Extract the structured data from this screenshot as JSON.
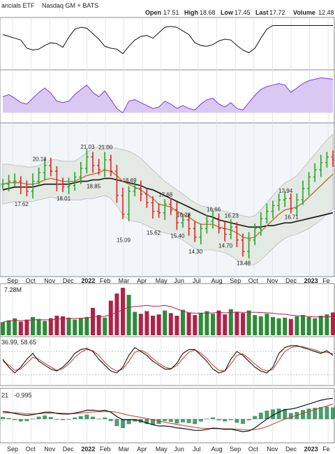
{
  "header": {
    "name_fragment": "ancials ETF",
    "exchange": "Nasdaq GM + BATS",
    "open_label": "Open",
    "open": "17.51",
    "high_label": "High",
    "high": "18.68",
    "low_label": "Low",
    "low": "17.45",
    "last_label": "Last",
    "last": "17.72",
    "volume_label": "Volume",
    "volume": "12.48"
  },
  "colors": {
    "up": "#2ca02c",
    "down": "#d62728",
    "price_bg": "#f3f6f9",
    "band_fill": "#e3e9e3",
    "ma_fast": "#b06b2a",
    "ma_slow": "#111111",
    "rsi_fill": "#d9c8f2",
    "rsi_line": "#7b3fd6",
    "vol_up": "#2e8b3a",
    "vol_down": "#b0224a",
    "stoch_k": "#111111",
    "stoch_d": "#c0392b",
    "macd_hist": "#2e8b57",
    "macd_line": "#111111",
    "macd_signal": "#c0392b"
  },
  "chart_data": {
    "type": "candlestick",
    "time_axis_labels": [
      "Sep",
      "Oct",
      "Nov",
      "Dec",
      "2022",
      "Feb",
      "Mar",
      "Apr",
      "May",
      "Jun",
      "Jul",
      "Aug",
      "Sep",
      "Oct",
      "Nov",
      "Dec",
      "2023",
      "Fe"
    ],
    "price_annotations": [
      {
        "label": "17.62",
        "week": 3
      },
      {
        "label": "20.18",
        "week": 6
      },
      {
        "label": "18.01",
        "week": 10
      },
      {
        "label": "21.03",
        "week": 14
      },
      {
        "label": "18.85",
        "week": 15
      },
      {
        "label": "21.00",
        "week": 17
      },
      {
        "label": "15.09",
        "week": 20
      },
      {
        "label": "18.69",
        "week": 21
      },
      {
        "label": "15.62",
        "week": 25
      },
      {
        "label": "17.68",
        "week": 27
      },
      {
        "label": "15.40",
        "week": 29
      },
      {
        "label": "16.28",
        "week": 30
      },
      {
        "label": "14.30",
        "week": 32
      },
      {
        "label": "16.66",
        "week": 35
      },
      {
        "label": "14.70",
        "week": 37
      },
      {
        "label": "16.23",
        "week": 38
      },
      {
        "label": "13.48",
        "week": 40
      },
      {
        "label": "17.94",
        "week": 47
      },
      {
        "label": "16.71",
        "week": 48
      }
    ],
    "weekly_closes": [
      18.7,
      18.9,
      18.9,
      18.5,
      18.2,
      18.9,
      19.5,
      20.0,
      19.6,
      18.7,
      18.5,
      18.6,
      19.2,
      19.8,
      20.6,
      20.0,
      19.7,
      20.4,
      19.6,
      17.9,
      16.6,
      18.2,
      18.4,
      18.0,
      17.4,
      16.8,
      16.7,
      17.3,
      16.9,
      16.0,
      16.2,
      15.6,
      15.0,
      15.6,
      16.1,
      16.3,
      15.6,
      15.2,
      15.7,
      14.8,
      14.0,
      14.8,
      15.6,
      16.3,
      16.8,
      17.2,
      17.6,
      17.7,
      17.0,
      17.6,
      18.4,
      19.2,
      19.7,
      20.2,
      20.6,
      20.4
    ],
    "sma_fast_values": [
      18.7,
      18.8,
      18.8,
      18.8,
      18.7,
      18.7,
      18.8,
      19.0,
      19.1,
      19.0,
      18.9,
      18.9,
      18.9,
      19.1,
      19.3,
      19.4,
      19.5,
      19.7,
      19.6,
      19.3,
      18.9,
      18.7,
      18.5,
      18.3,
      18.0,
      17.7,
      17.3,
      17.2,
      17.1,
      16.8,
      16.6,
      16.4,
      16.1,
      15.9,
      15.9,
      15.9,
      15.7,
      15.6,
      15.5,
      15.3,
      15.0,
      14.9,
      15.0,
      15.4,
      15.8,
      16.2,
      16.6,
      16.9,
      17.0,
      17.1,
      17.4,
      17.8,
      18.2,
      18.6,
      19.0,
      19.4
    ],
    "sma_slow_values": [
      18.3,
      18.4,
      18.5,
      18.5,
      18.5,
      18.5,
      18.6,
      18.7,
      18.7,
      18.7,
      18.7,
      18.7,
      18.8,
      18.9,
      18.9,
      19.0,
      19.0,
      19.1,
      19.1,
      19.0,
      18.9,
      18.8,
      18.7,
      18.6,
      18.4,
      18.3,
      18.1,
      17.9,
      17.7,
      17.5,
      17.3,
      17.1,
      16.9,
      16.7,
      16.5,
      16.4,
      16.2,
      16.1,
      16.0,
      15.9,
      15.8,
      15.7,
      15.7,
      15.7,
      15.8,
      15.8,
      15.9,
      16.0,
      16.0,
      16.1,
      16.2,
      16.3,
      16.4,
      16.5,
      16.6,
      16.7
    ],
    "bb_upper_values": [
      20.1,
      20.1,
      20.0,
      20.0,
      19.9,
      19.9,
      20.0,
      20.2,
      20.4,
      20.4,
      20.3,
      20.3,
      20.3,
      20.6,
      20.9,
      21.2,
      21.3,
      21.4,
      21.3,
      21.2,
      21.1,
      21.0,
      20.8,
      20.5,
      20.1,
      19.7,
      19.3,
      18.9,
      18.6,
      18.3,
      18.0,
      17.7,
      17.4,
      17.2,
      17.1,
      17.0,
      16.9,
      16.8,
      16.7,
      16.6,
      16.5,
      16.4,
      16.5,
      16.9,
      17.4,
      17.9,
      18.4,
      18.8,
      19.0,
      19.3,
      19.8,
      20.3,
      20.8,
      21.3,
      21.8,
      22.2
    ],
    "bb_lower_values": [
      17.3,
      17.4,
      17.5,
      17.5,
      17.5,
      17.5,
      17.6,
      17.7,
      17.8,
      17.7,
      17.6,
      17.6,
      17.6,
      17.6,
      17.7,
      17.7,
      17.8,
      17.9,
      17.7,
      17.2,
      16.5,
      16.2,
      16.1,
      16.0,
      15.8,
      15.6,
      15.4,
      15.3,
      15.2,
      15.0,
      14.8,
      14.5,
      14.2,
      14.1,
      14.1,
      14.1,
      14.0,
      13.9,
      13.7,
      13.4,
      13.1,
      13.0,
      13.1,
      13.4,
      13.8,
      14.2,
      14.6,
      14.9,
      15.1,
      15.2,
      15.4,
      15.6,
      15.9,
      16.2,
      16.6,
      17.0
    ],
    "rsi_values": [
      52,
      55,
      50,
      44,
      42,
      50,
      58,
      64,
      57,
      46,
      44,
      46,
      55,
      62,
      68,
      58,
      52,
      60,
      48,
      36,
      30,
      46,
      48,
      44,
      40,
      36,
      38,
      46,
      42,
      36,
      40,
      36,
      34,
      42,
      48,
      50,
      42,
      38,
      44,
      36,
      34,
      44,
      54,
      62,
      66,
      68,
      70,
      68,
      58,
      64,
      70,
      74,
      76,
      78,
      77,
      76
    ],
    "adx_values": [
      70,
      66,
      62,
      58,
      40,
      36,
      38,
      46,
      52,
      50,
      42,
      64,
      82,
      86,
      84,
      72,
      60,
      44,
      40,
      38,
      28,
      44,
      58,
      66,
      68,
      62,
      74,
      86,
      88,
      86,
      78,
      70,
      52,
      46,
      44,
      48,
      56,
      60,
      58,
      46,
      36,
      30,
      40,
      62,
      82,
      90,
      90,
      90,
      90,
      90,
      90,
      90,
      90,
      90,
      90,
      90
    ],
    "volume_values": [
      2.0,
      2.3,
      2.6,
      2.1,
      2.4,
      2.8,
      2.5,
      2.2,
      2.6,
      3.0,
      2.9,
      2.7,
      2.4,
      2.6,
      2.8,
      4.2,
      3.1,
      2.7,
      5.3,
      6.4,
      7.28,
      6.2,
      3.6,
      3.3,
      3.7,
      3.0,
      3.2,
      3.8,
      3.4,
      3.0,
      3.9,
      3.5,
      3.1,
      3.4,
      3.7,
      3.3,
      3.8,
      3.2,
      4.0,
      3.6,
      3.4,
      3.8,
      3.1,
      2.9,
      3.3,
      2.8,
      2.6,
      2.7,
      2.5,
      2.9,
      3.1,
      2.8,
      2.6,
      3.0,
      3.2,
      3.5
    ],
    "volume_max_label": "7.28M",
    "stoch_label": "36.99, 58.65",
    "stoch_k_values": [
      60,
      40,
      25,
      40,
      60,
      75,
      55,
      45,
      35,
      30,
      40,
      55,
      75,
      85,
      88,
      80,
      60,
      45,
      30,
      25,
      40,
      70,
      90,
      80,
      70,
      55,
      45,
      35,
      35,
      50,
      75,
      85,
      85,
      70,
      55,
      35,
      25,
      30,
      60,
      80,
      70,
      55,
      40,
      30,
      25,
      40,
      75,
      90,
      95,
      95,
      90,
      85,
      80,
      75,
      82,
      70
    ],
    "stoch_d_values": [
      55,
      45,
      32,
      35,
      50,
      65,
      60,
      50,
      40,
      32,
      36,
      48,
      65,
      78,
      85,
      82,
      70,
      52,
      38,
      30,
      35,
      55,
      78,
      83,
      76,
      62,
      50,
      40,
      36,
      44,
      62,
      78,
      84,
      76,
      62,
      45,
      32,
      30,
      48,
      70,
      74,
      62,
      48,
      36,
      30,
      34,
      58,
      80,
      90,
      93,
      92,
      88,
      84,
      78,
      78,
      74
    ],
    "macd_label_left": "21",
    "macd_label_right": "-0.995",
    "macd_hist_values": [
      0.1,
      0.05,
      -0.05,
      -0.12,
      -0.1,
      0.02,
      0.12,
      0.18,
      0.1,
      -0.02,
      -0.05,
      -0.02,
      0.08,
      0.15,
      0.22,
      0.12,
      0.02,
      0.08,
      -0.1,
      -0.35,
      -0.45,
      -0.25,
      -0.12,
      -0.18,
      -0.25,
      -0.3,
      -0.24,
      -0.1,
      -0.14,
      -0.22,
      -0.16,
      -0.2,
      -0.25,
      -0.12,
      0.02,
      0.08,
      -0.06,
      -0.12,
      -0.05,
      -0.18,
      -0.24,
      -0.06,
      0.15,
      0.32,
      0.42,
      0.48,
      0.52,
      0.5,
      0.3,
      0.35,
      0.45,
      0.52,
      0.56,
      0.6,
      0.62,
      0.58
    ],
    "macd_line_values": [
      0.6,
      0.55,
      0.45,
      0.35,
      0.3,
      0.35,
      0.45,
      0.55,
      0.55,
      0.45,
      0.4,
      0.4,
      0.48,
      0.58,
      0.7,
      0.7,
      0.65,
      0.7,
      0.55,
      0.2,
      -0.05,
      -0.05,
      -0.05,
      -0.15,
      -0.3,
      -0.45,
      -0.55,
      -0.55,
      -0.6,
      -0.7,
      -0.75,
      -0.82,
      -0.9,
      -0.9,
      -0.82,
      -0.72,
      -0.75,
      -0.82,
      -0.8,
      -0.9,
      -1.0,
      -0.95,
      -0.7,
      -0.35,
      0.0,
      0.3,
      0.55,
      0.75,
      0.8,
      0.9,
      1.05,
      1.2,
      1.35,
      1.5,
      1.6,
      1.65
    ],
    "macd_signal_values": [
      0.5,
      0.5,
      0.5,
      0.47,
      0.42,
      0.4,
      0.42,
      0.45,
      0.48,
      0.48,
      0.46,
      0.44,
      0.44,
      0.48,
      0.52,
      0.56,
      0.58,
      0.6,
      0.6,
      0.55,
      0.42,
      0.3,
      0.22,
      0.14,
      0.05,
      -0.05,
      -0.15,
      -0.25,
      -0.34,
      -0.42,
      -0.5,
      -0.58,
      -0.65,
      -0.72,
      -0.75,
      -0.76,
      -0.76,
      -0.77,
      -0.78,
      -0.8,
      -0.84,
      -0.86,
      -0.84,
      -0.75,
      -0.6,
      -0.4,
      -0.2,
      0.0,
      0.15,
      0.3,
      0.45,
      0.6,
      0.75,
      0.9,
      1.05,
      1.18
    ]
  }
}
